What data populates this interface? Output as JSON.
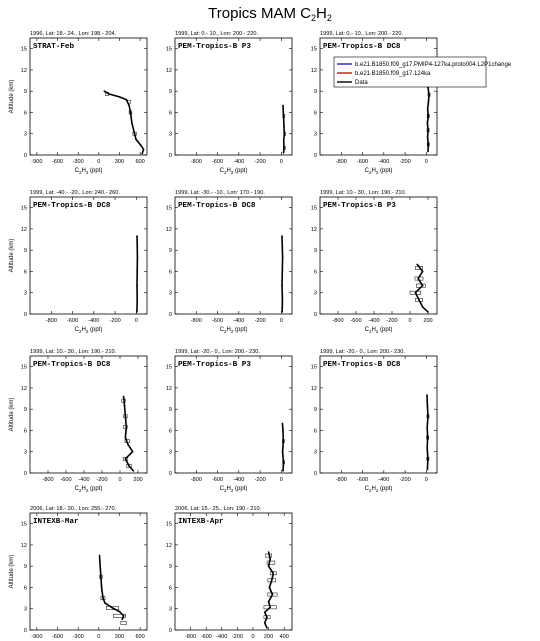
{
  "figure": {
    "title_main": "Tropics MAM C",
    "title_sub": "2",
    "title_tail": "H",
    "title_sub2": "2"
  },
  "colors": {
    "series_blue": "#1f1fd0",
    "series_red": "#c81414",
    "data": "#000000"
  },
  "legend": {
    "items": [
      {
        "label": "b.e21.B1850.f09_g17.PMIP4-127ka.proto004.L2P1change",
        "color": "#1f1fd0"
      },
      {
        "label": "b.e21.B1850.f09_g17.124ka",
        "color": "#c81414"
      },
      {
        "label": "Data",
        "color": "#000000"
      }
    ]
  },
  "axes": {
    "ylabel": "Altitude (km)",
    "xlabel_main": "C",
    "xlabel_sub1": "2",
    "xlabel_mid": "H",
    "xlabel_sub2": "2",
    "xlabel_unit": " (ppt)",
    "yticks": [
      "0",
      "3",
      "6",
      "9",
      "12",
      "15"
    ]
  },
  "chart_data": [
    {
      "type": "line",
      "header": "1996, Lat: 18.- 24., Lon: 198.- 204.",
      "campaign": "STRAT-Feb",
      "xlim": [
        -1000,
        700
      ],
      "xticks": [
        -900,
        -600,
        -300,
        0,
        300,
        600
      ],
      "ylim": [
        0,
        16.5
      ],
      "profile": [
        [
          630,
          0.2
        ],
        [
          650,
          0.8
        ],
        [
          600,
          1.5
        ],
        [
          540,
          2.2
        ],
        [
          520,
          3.0
        ],
        [
          480,
          4.5
        ],
        [
          460,
          6.0
        ],
        [
          440,
          7.0
        ],
        [
          400,
          7.8
        ],
        [
          300,
          8.2
        ],
        [
          150,
          8.6
        ],
        [
          80,
          9.0
        ]
      ],
      "errors": [
        [
          520,
          3.0,
          25
        ],
        [
          460,
          6.0,
          20
        ],
        [
          440,
          7.5,
          20
        ],
        [
          120,
          8.6,
          25
        ]
      ]
    },
    {
      "type": "line",
      "header": "1999, Lat: 0.- 10., Lon: 200.- 220.",
      "campaign": "PEM-Tropics-B P3",
      "xlim": [
        -1000,
        100
      ],
      "xticks": [
        -800,
        -600,
        -400,
        -200,
        0
      ],
      "ylim": [
        0,
        16.5
      ],
      "profile": [
        [
          20,
          0.3
        ],
        [
          25,
          1.0
        ],
        [
          22,
          2.0
        ],
        [
          28,
          3.0
        ],
        [
          25,
          4.0
        ],
        [
          22,
          5.0
        ],
        [
          18,
          6.0
        ],
        [
          15,
          7.0
        ]
      ],
      "errors": [
        [
          25,
          1.0,
          6
        ],
        [
          28,
          3.0,
          6
        ],
        [
          20,
          5.5,
          6
        ]
      ]
    },
    {
      "type": "line",
      "header": "1999, Lat: 0.- 10., Lon: 200.- 220.",
      "campaign": "PEM-Tropics-B DC8",
      "xlim": [
        -1000,
        100
      ],
      "xticks": [
        -800,
        -600,
        -400,
        -200,
        0
      ],
      "ylim": [
        0,
        16.5
      ],
      "profile": [
        [
          15,
          0.5
        ],
        [
          18,
          1.5
        ],
        [
          12,
          2.5
        ],
        [
          16,
          3.5
        ],
        [
          10,
          4.5
        ],
        [
          18,
          5.5
        ],
        [
          12,
          6.5
        ],
        [
          20,
          7.5
        ],
        [
          25,
          8.5
        ],
        [
          15,
          9.5
        ],
        [
          8,
          10.5
        ],
        [
          5,
          11.0
        ]
      ],
      "errors": [
        [
          18,
          1.5,
          10
        ],
        [
          16,
          3.5,
          10
        ],
        [
          18,
          5.5,
          10
        ],
        [
          25,
          8.5,
          10
        ],
        [
          8,
          10.5,
          10
        ]
      ]
    },
    {
      "type": "line",
      "header": "1999, Lat: -40.- -20., Lon: 240.- 260.",
      "campaign": "PEM-Tropics-B DC8",
      "xlim": [
        -1000,
        100
      ],
      "xticks": [
        -800,
        -600,
        -400,
        -200,
        0
      ],
      "ylim": [
        0,
        16.5
      ],
      "profile": [
        [
          5,
          0.3
        ],
        [
          8,
          2.0
        ],
        [
          6,
          4.0
        ],
        [
          8,
          6.0
        ],
        [
          10,
          8.0
        ],
        [
          8,
          10.0
        ],
        [
          6,
          11.0
        ]
      ],
      "errors": []
    },
    {
      "type": "line",
      "header": "1999, Lat: -30.- -10., Lon: 170.- 190.",
      "campaign": "PEM-Tropics-B DC8",
      "xlim": [
        -1000,
        100
      ],
      "xticks": [
        -800,
        -600,
        -400,
        -200,
        0
      ],
      "ylim": [
        0,
        16.5
      ],
      "profile": [
        [
          8,
          0.3
        ],
        [
          10,
          2.0
        ],
        [
          6,
          4.0
        ],
        [
          9,
          6.0
        ],
        [
          12,
          8.0
        ],
        [
          8,
          10.0
        ],
        [
          6,
          11.0
        ]
      ],
      "errors": []
    },
    {
      "type": "line",
      "header": "1999, Lat: 10.- 30., Lon: 190.- 210.",
      "campaign": "PEM-Tropics-B P3",
      "xlim": [
        -1000,
        300
      ],
      "xticks": [
        -800,
        -600,
        -400,
        -200,
        0,
        200
      ],
      "ylim": [
        0,
        16.5
      ],
      "profile": [
        [
          200,
          0.3
        ],
        [
          140,
          1.0
        ],
        [
          100,
          2.0
        ],
        [
          60,
          3.0
        ],
        [
          140,
          4.0
        ],
        [
          90,
          5.0
        ],
        [
          140,
          6.0
        ],
        [
          80,
          7.0
        ]
      ],
      "errors": [
        [
          100,
          2.0,
          40
        ],
        [
          60,
          3.0,
          60
        ],
        [
          120,
          4.0,
          50
        ],
        [
          100,
          5.0,
          45
        ],
        [
          100,
          6.5,
          40
        ]
      ]
    },
    {
      "type": "line",
      "header": "1999, Lat: 10.- 30., Lon: 190.- 210.",
      "campaign": "PEM-Tropics-B DC8",
      "xlim": [
        -1000,
        300
      ],
      "xticks": [
        -800,
        -600,
        -400,
        -200,
        0,
        200
      ],
      "ylim": [
        0,
        16.5
      ],
      "profile": [
        [
          150,
          0.3
        ],
        [
          100,
          1.0
        ],
        [
          60,
          2.0
        ],
        [
          140,
          3.0
        ],
        [
          90,
          4.0
        ],
        [
          60,
          5.0
        ],
        [
          70,
          6.5
        ],
        [
          60,
          8.0
        ],
        [
          50,
          9.5
        ],
        [
          40,
          10.8
        ]
      ],
      "errors": [
        [
          100,
          1.0,
          25
        ],
        [
          60,
          2.0,
          25
        ],
        [
          80,
          4.5,
          25
        ],
        [
          60,
          6.5,
          20
        ],
        [
          60,
          8.0,
          20
        ],
        [
          40,
          10.2,
          20
        ]
      ]
    },
    {
      "type": "line",
      "header": "1999, Lat: -20.- 0., Lon: 200.- 230.",
      "campaign": "PEM-Tropics-B P3",
      "xlim": [
        -1000,
        100
      ],
      "xticks": [
        -800,
        -600,
        -400,
        -200,
        0
      ],
      "ylim": [
        0,
        16.5
      ],
      "profile": [
        [
          15,
          0.3
        ],
        [
          20,
          1.5
        ],
        [
          12,
          3.0
        ],
        [
          18,
          4.5
        ],
        [
          15,
          6.0
        ],
        [
          10,
          7.0
        ]
      ],
      "errors": [
        [
          20,
          1.5,
          8
        ],
        [
          18,
          4.5,
          8
        ]
      ]
    },
    {
      "type": "line",
      "header": "1999, Lat: -20.- 0., Lon: 200.- 230.",
      "campaign": "PEM-Tropics-B DC8",
      "xlim": [
        -1000,
        100
      ],
      "xticks": [
        -800,
        -600,
        -400,
        -200,
        0
      ],
      "ylim": [
        0,
        16.5
      ],
      "profile": [
        [
          10,
          0.5
        ],
        [
          14,
          2.0
        ],
        [
          8,
          3.5
        ],
        [
          12,
          5.0
        ],
        [
          8,
          6.5
        ],
        [
          15,
          8.0
        ],
        [
          10,
          9.5
        ],
        [
          6,
          11.0
        ]
      ],
      "errors": [
        [
          14,
          2.0,
          10
        ],
        [
          12,
          5.0,
          10
        ],
        [
          15,
          8.0,
          10
        ]
      ]
    },
    {
      "type": "line",
      "header": "2006, Lat: 18.- 30., Lon: 255.- 270.",
      "campaign": "INTEXB-Mar",
      "xlim": [
        -1000,
        700
      ],
      "xticks": [
        -900,
        -600,
        -300,
        0,
        300,
        600
      ],
      "ylim": [
        0,
        16.5
      ],
      "profile": [
        [
          340,
          1.5
        ],
        [
          360,
          2.0
        ],
        [
          300,
          2.6
        ],
        [
          200,
          3.1
        ],
        [
          90,
          3.8
        ],
        [
          60,
          4.5
        ],
        [
          40,
          6.0
        ],
        [
          30,
          7.5
        ],
        [
          20,
          9.0
        ],
        [
          10,
          10.5
        ]
      ],
      "errors": [
        [
          360,
          1.0,
          40
        ],
        [
          300,
          2.0,
          90
        ],
        [
          200,
          3.1,
          90
        ],
        [
          60,
          4.5,
          30
        ],
        [
          30,
          7.5,
          20
        ]
      ]
    },
    {
      "type": "line",
      "header": "2006, Lat: 15.- 25., Lon: 190.- 210.",
      "campaign": "INTEXB-Apr",
      "xlim": [
        -1000,
        500
      ],
      "xticks": [
        -800,
        -600,
        -400,
        -200,
        0,
        200,
        400
      ],
      "ylim": [
        0,
        16.5
      ],
      "profile": [
        [
          180,
          0.3
        ],
        [
          150,
          1.0
        ],
        [
          180,
          1.8
        ],
        [
          150,
          2.5
        ],
        [
          220,
          3.2
        ],
        [
          200,
          4.0
        ],
        [
          250,
          5.0
        ],
        [
          210,
          6.0
        ],
        [
          240,
          7.0
        ],
        [
          260,
          8.0
        ],
        [
          200,
          9.0
        ],
        [
          220,
          10.0
        ],
        [
          200,
          11.0
        ]
      ],
      "errors": [
        [
          180,
          1.8,
          40
        ],
        [
          220,
          3.2,
          80
        ],
        [
          250,
          5.0,
          60
        ],
        [
          240,
          7.0,
          50
        ],
        [
          260,
          8.0,
          40
        ],
        [
          230,
          9.5,
          50
        ],
        [
          200,
          10.5,
          40
        ]
      ]
    }
  ]
}
